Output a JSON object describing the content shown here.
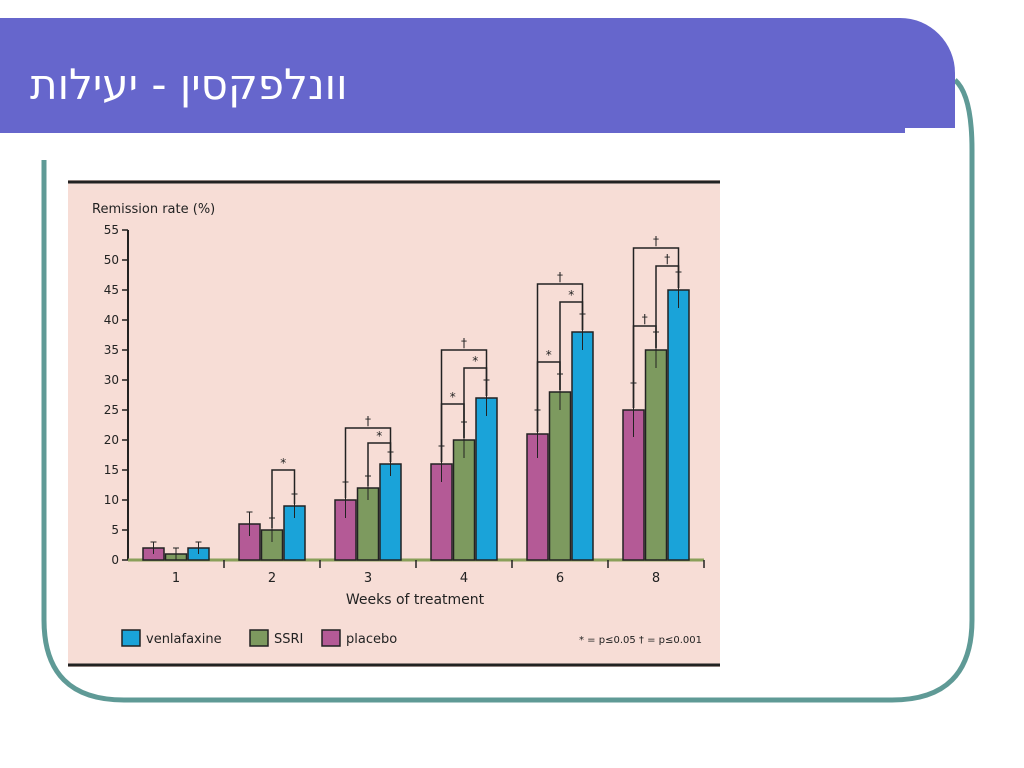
{
  "slide": {
    "title": "וונלפקסין - יעילות"
  },
  "colors": {
    "header": "#6666cc",
    "frame_border": "#5f9a96",
    "panel_background": "#f7ddd6",
    "venlafaxine": "#1aa3d9",
    "ssri": "#7d9a5f",
    "placebo": "#b45a96"
  },
  "chart_data": {
    "type": "bar",
    "ylabel": "Remission rate (%)",
    "xlabel": "Weeks of treatment",
    "categories": [
      "1",
      "2",
      "3",
      "4",
      "6",
      "8"
    ],
    "ylim": [
      0,
      55
    ],
    "yticks": [
      0,
      5,
      10,
      15,
      20,
      25,
      30,
      35,
      40,
      45,
      50,
      55
    ],
    "series": [
      {
        "name": "placebo",
        "color": "#b45a96",
        "values": [
          2,
          6,
          10,
          16,
          21,
          25
        ],
        "errors": [
          1,
          2,
          3,
          3,
          4,
          4.5
        ]
      },
      {
        "name": "SSRI",
        "color": "#7d9a5f",
        "values": [
          1,
          5,
          12,
          20,
          28,
          35
        ],
        "errors": [
          1,
          2,
          2,
          3,
          3,
          3
        ]
      },
      {
        "name": "venlafaxine",
        "color": "#1aa3d9",
        "values": [
          2,
          9,
          16,
          27,
          38,
          45
        ],
        "errors": [
          1,
          2,
          2,
          3,
          3,
          3
        ]
      }
    ],
    "legend": {
      "placement": "bottom",
      "order": [
        "venlafaxine",
        "SSRI",
        "placebo"
      ],
      "note": "* = p≤0.05  † = p≤0.001"
    },
    "significance": [
      {
        "category": "2",
        "from": "SSRI",
        "to": "venlafaxine",
        "symbol": "*",
        "level": 15
      },
      {
        "category": "3",
        "from": "SSRI",
        "to": "venlafaxine",
        "symbol": "*",
        "level": 19.5
      },
      {
        "category": "3",
        "from": "placebo",
        "to": "venlafaxine",
        "symbol": "†",
        "level": 22
      },
      {
        "category": "4",
        "from": "placebo",
        "to": "SSRI",
        "symbol": "*",
        "level": 26
      },
      {
        "category": "4",
        "from": "SSRI",
        "to": "venlafaxine",
        "symbol": "*",
        "level": 32
      },
      {
        "category": "4",
        "from": "placebo",
        "to": "venlafaxine",
        "symbol": "†",
        "level": 35
      },
      {
        "category": "6",
        "from": "placebo",
        "to": "SSRI",
        "symbol": "*",
        "level": 33
      },
      {
        "category": "6",
        "from": "SSRI",
        "to": "venlafaxine",
        "symbol": "*",
        "level": 43
      },
      {
        "category": "6",
        "from": "placebo",
        "to": "venlafaxine",
        "symbol": "†",
        "level": 46
      },
      {
        "category": "8",
        "from": "placebo",
        "to": "SSRI",
        "symbol": "†",
        "level": 39
      },
      {
        "category": "8",
        "from": "SSRI",
        "to": "venlafaxine",
        "symbol": "†",
        "level": 49
      },
      {
        "category": "8",
        "from": "placebo",
        "to": "venlafaxine",
        "symbol": "†",
        "level": 52
      }
    ]
  }
}
